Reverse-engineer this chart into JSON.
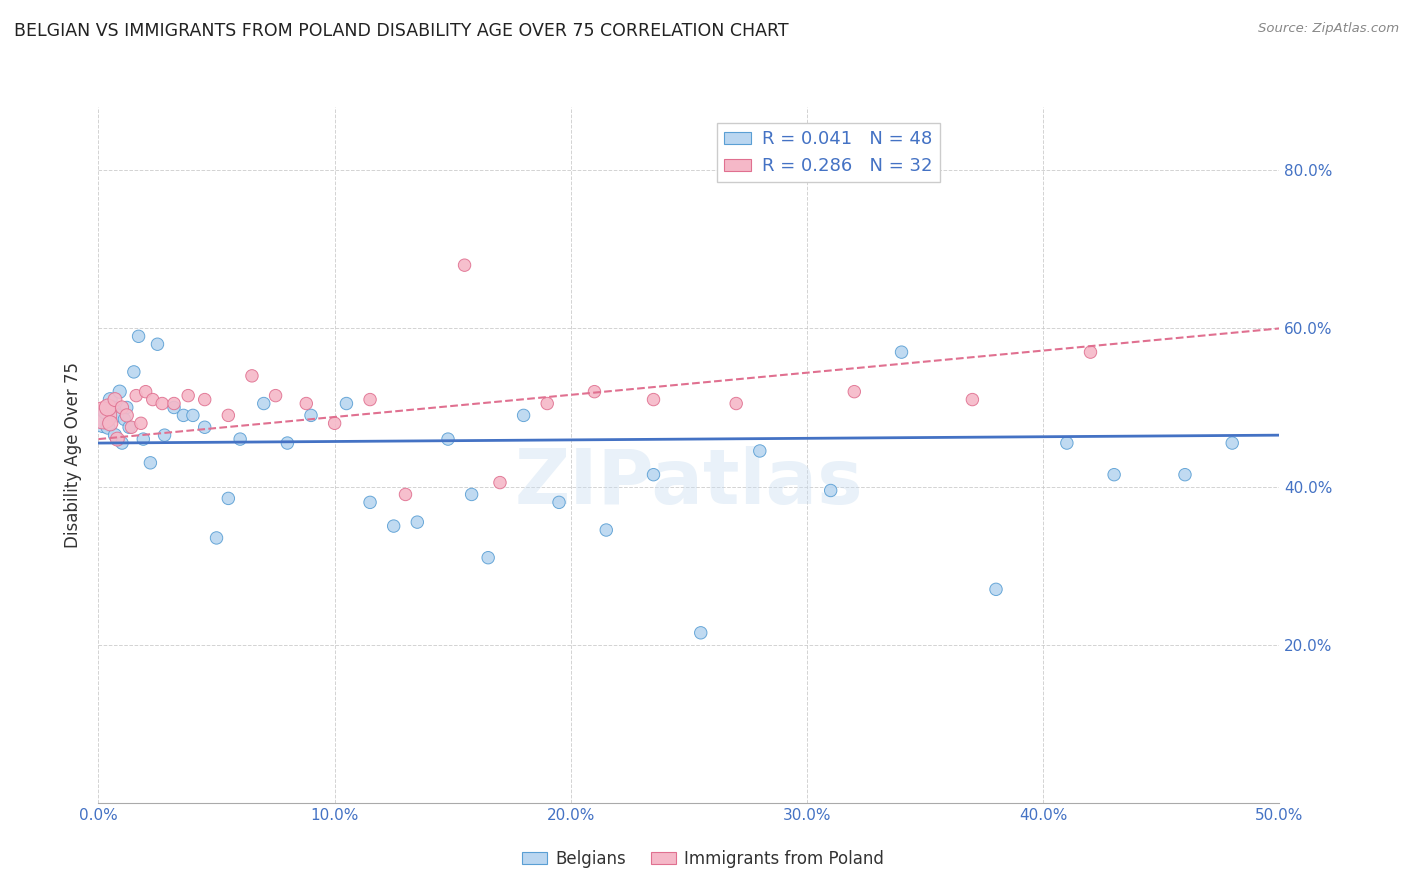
{
  "title": "BELGIAN VS IMMIGRANTS FROM POLAND DISABILITY AGE OVER 75 CORRELATION CHART",
  "source": "Source: ZipAtlas.com",
  "ylabel": "Disability Age Over 75",
  "xlabel_belgians": "Belgians",
  "xlabel_poland": "Immigrants from Poland",
  "xlim": [
    0.0,
    0.5
  ],
  "ylim": [
    0.0,
    0.88
  ],
  "yticks": [
    0.2,
    0.4,
    0.6,
    0.8
  ],
  "xticks": [
    0.0,
    0.1,
    0.2,
    0.3,
    0.4,
    0.5
  ],
  "legend_R_belgians": "R = 0.041",
  "legend_N_belgians": "N = 48",
  "legend_R_poland": "R = 0.286",
  "legend_N_poland": "N = 32",
  "color_belgian_fill": "#bad6f0",
  "color_belgian_edge": "#5a9fd4",
  "color_poland_fill": "#f5b8c8",
  "color_poland_edge": "#e07090",
  "color_belgian_line": "#4472C4",
  "color_poland_line": "#e07090",
  "color_title": "#222222",
  "color_tick": "#4472C4",
  "watermark": "ZIPatlas",
  "belgians_x": [
    0.002,
    0.003,
    0.004,
    0.005,
    0.006,
    0.007,
    0.008,
    0.009,
    0.01,
    0.011,
    0.012,
    0.013,
    0.015,
    0.017,
    0.019,
    0.022,
    0.025,
    0.028,
    0.032,
    0.036,
    0.04,
    0.045,
    0.05,
    0.055,
    0.06,
    0.07,
    0.08,
    0.09,
    0.105,
    0.115,
    0.125,
    0.135,
    0.148,
    0.158,
    0.165,
    0.18,
    0.195,
    0.215,
    0.235,
    0.255,
    0.28,
    0.31,
    0.34,
    0.38,
    0.41,
    0.43,
    0.46,
    0.48
  ],
  "belgians_y": [
    0.48,
    0.495,
    0.475,
    0.51,
    0.5,
    0.465,
    0.49,
    0.52,
    0.455,
    0.485,
    0.5,
    0.475,
    0.545,
    0.59,
    0.46,
    0.43,
    0.58,
    0.465,
    0.5,
    0.49,
    0.49,
    0.475,
    0.335,
    0.385,
    0.46,
    0.505,
    0.455,
    0.49,
    0.505,
    0.38,
    0.35,
    0.355,
    0.46,
    0.39,
    0.31,
    0.49,
    0.38,
    0.345,
    0.415,
    0.215,
    0.445,
    0.395,
    0.57,
    0.27,
    0.455,
    0.415,
    0.415,
    0.455
  ],
  "belgians_size": [
    180,
    120,
    100,
    100,
    90,
    90,
    90,
    90,
    80,
    80,
    80,
    80,
    80,
    80,
    80,
    80,
    80,
    80,
    80,
    80,
    80,
    80,
    80,
    80,
    80,
    80,
    80,
    80,
    80,
    80,
    80,
    80,
    80,
    80,
    80,
    80,
    80,
    80,
    80,
    80,
    80,
    80,
    80,
    80,
    80,
    80,
    80,
    80
  ],
  "poland_x": [
    0.002,
    0.004,
    0.005,
    0.007,
    0.008,
    0.01,
    0.012,
    0.014,
    0.016,
    0.018,
    0.02,
    0.023,
    0.027,
    0.032,
    0.038,
    0.045,
    0.055,
    0.065,
    0.075,
    0.088,
    0.1,
    0.115,
    0.13,
    0.155,
    0.17,
    0.19,
    0.21,
    0.235,
    0.27,
    0.32,
    0.37,
    0.42
  ],
  "poland_y": [
    0.49,
    0.5,
    0.48,
    0.51,
    0.46,
    0.5,
    0.49,
    0.475,
    0.515,
    0.48,
    0.52,
    0.51,
    0.505,
    0.505,
    0.515,
    0.51,
    0.49,
    0.54,
    0.515,
    0.505,
    0.48,
    0.51,
    0.39,
    0.68,
    0.405,
    0.505,
    0.52,
    0.51,
    0.505,
    0.52,
    0.51,
    0.57
  ],
  "poland_size": [
    380,
    150,
    120,
    100,
    100,
    90,
    90,
    80,
    80,
    80,
    80,
    80,
    80,
    80,
    80,
    80,
    80,
    80,
    80,
    80,
    80,
    80,
    80,
    80,
    80,
    80,
    80,
    80,
    80,
    80,
    80,
    80
  ],
  "belgian_line_x0": 0.0,
  "belgian_line_x1": 0.5,
  "belgian_line_y0": 0.455,
  "belgian_line_y1": 0.465,
  "poland_line_x0": 0.0,
  "poland_line_x1": 0.5,
  "poland_line_y0": 0.46,
  "poland_line_y1": 0.6
}
